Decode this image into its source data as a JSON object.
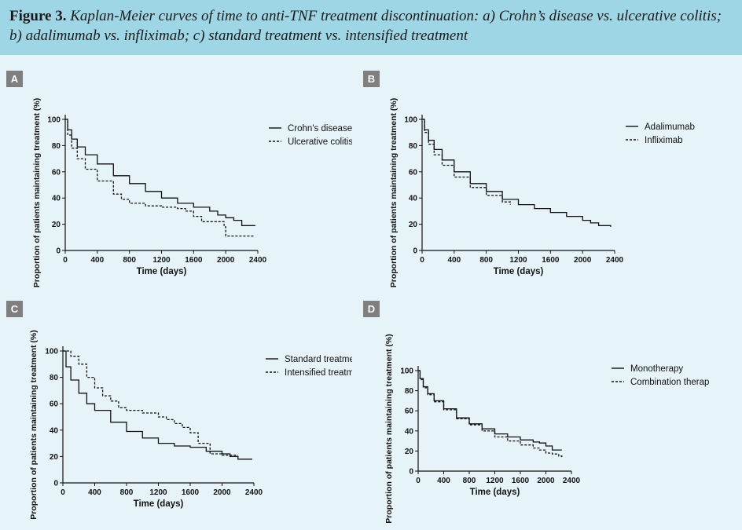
{
  "caption": {
    "label": "Figure 3.",
    "text": "Kaplan-Meier curves of time to anti-TNF treatment discontinuation: a) Crohn’s disease vs. ulcerative colitis; b) adalimumab vs. infliximab; c) standard treatment vs. intensified treatment"
  },
  "colors": {
    "caption_bg": "#9fd6e5",
    "page_bg": "#e6f3f8",
    "curve": "#111111",
    "badge": "#7f7f7f"
  },
  "chart_data": [
    {
      "panel": "A",
      "type": "line",
      "xlabel": "Time (days)",
      "ylabel": "Proportion of patients maintaining treatment (%)",
      "xlim": [
        0,
        2400
      ],
      "ylim": [
        0,
        100
      ],
      "xticks": [
        0,
        400,
        800,
        1200,
        1600,
        2000,
        2400
      ],
      "yticks": [
        0,
        20,
        40,
        60,
        80,
        100
      ],
      "legend_position": "top-right",
      "series": [
        {
          "name": "Crohn's disease",
          "style": "solid",
          "x": [
            0,
            30,
            80,
            150,
            250,
            400,
            600,
            800,
            1000,
            1200,
            1400,
            1600,
            1800,
            1900,
            2000,
            2100,
            2200,
            2370
          ],
          "y": [
            100,
            92,
            85,
            79,
            73,
            66,
            57,
            51,
            45,
            40,
            36,
            33,
            30,
            27,
            25,
            23,
            19,
            19
          ]
        },
        {
          "name": "Ulcerative colitis",
          "style": "dashed",
          "x": [
            0,
            30,
            80,
            150,
            250,
            400,
            600,
            700,
            800,
            1000,
            1200,
            1400,
            1500,
            1600,
            1700,
            1900,
            1980,
            2000,
            2200,
            2350
          ],
          "y": [
            100,
            88,
            78,
            70,
            62,
            53,
            43,
            39,
            36,
            34,
            33,
            32,
            30,
            26,
            22,
            22,
            18,
            11,
            11,
            11
          ]
        }
      ]
    },
    {
      "panel": "B",
      "type": "line",
      "xlabel": "Time (days)",
      "ylabel": "Proportion of patients maintaining treatment (%)",
      "xlim": [
        0,
        2400
      ],
      "ylim": [
        0,
        100
      ],
      "xticks": [
        0,
        400,
        800,
        1200,
        1600,
        2000,
        2400
      ],
      "yticks": [
        0,
        20,
        40,
        60,
        80,
        100
      ],
      "legend_position": "top-right",
      "series": [
        {
          "name": "Adalimumab",
          "style": "solid",
          "x": [
            0,
            30,
            80,
            150,
            250,
            400,
            600,
            800,
            1000,
            1200,
            1400,
            1600,
            1800,
            2000,
            2100,
            2200,
            2350
          ],
          "y": [
            100,
            92,
            84,
            77,
            69,
            60,
            51,
            45,
            39,
            35,
            32,
            29,
            26,
            23,
            21,
            19,
            18
          ]
        },
        {
          "name": "Infliximab",
          "style": "dashed",
          "x": [
            0,
            30,
            80,
            150,
            250,
            400,
            600,
            800,
            1000,
            1100
          ],
          "y": [
            100,
            90,
            81,
            73,
            65,
            56,
            48,
            42,
            37,
            35
          ]
        }
      ]
    },
    {
      "panel": "C",
      "type": "line",
      "xlabel": "Time (days)",
      "ylabel": "Proportion of patients maintaining treatment (%)",
      "xlim": [
        0,
        2400
      ],
      "ylim": [
        0,
        100
      ],
      "xticks": [
        0,
        400,
        800,
        1200,
        1600,
        2000,
        2400
      ],
      "yticks": [
        0,
        20,
        40,
        60,
        80,
        100
      ],
      "legend_position": "top-right",
      "series": [
        {
          "name": "Standard treatment",
          "style": "solid",
          "x": [
            0,
            40,
            100,
            200,
            300,
            400,
            600,
            800,
            1000,
            1200,
            1400,
            1600,
            1800,
            2000,
            2100,
            2200,
            2380
          ],
          "y": [
            100,
            88,
            78,
            68,
            60,
            55,
            46,
            39,
            34,
            30,
            28,
            27,
            24,
            22,
            20,
            18,
            18
          ]
        },
        {
          "name": "Intensified treatment",
          "style": "dashed",
          "x": [
            0,
            100,
            200,
            300,
            400,
            500,
            600,
            700,
            800,
            900,
            1000,
            1100,
            1200,
            1300,
            1400,
            1500,
            1600,
            1700,
            1800,
            1850,
            1900,
            2000,
            2100,
            2200
          ],
          "y": [
            100,
            96,
            90,
            80,
            72,
            66,
            62,
            57,
            55,
            55,
            53,
            53,
            50,
            48,
            45,
            42,
            38,
            30,
            30,
            22,
            22,
            21,
            21,
            21
          ]
        }
      ]
    },
    {
      "panel": "D",
      "type": "line",
      "xlabel": "Time (days)",
      "ylabel": "Proportion of patients maintaining treatment (%)",
      "xlim": [
        0,
        2400
      ],
      "ylim": [
        0,
        100
      ],
      "xticks": [
        0,
        400,
        800,
        1200,
        1600,
        2000,
        2400
      ],
      "yticks": [
        0,
        20,
        40,
        60,
        80,
        100
      ],
      "legend_position": "top-right",
      "series": [
        {
          "name": "Monotherapy",
          "style": "solid",
          "x": [
            0,
            30,
            80,
            150,
            250,
            400,
            600,
            800,
            1000,
            1200,
            1400,
            1600,
            1800,
            1900,
            2000,
            2100,
            2250
          ],
          "y": [
            100,
            92,
            84,
            77,
            70,
            62,
            53,
            47,
            42,
            37,
            34,
            31,
            29,
            28,
            25,
            21,
            21
          ]
        },
        {
          "name": "Combination therapy",
          "style": "dashed",
          "x": [
            0,
            30,
            80,
            150,
            250,
            400,
            600,
            800,
            1000,
            1200,
            1400,
            1600,
            1800,
            1900,
            2000,
            2100,
            2200,
            2250
          ],
          "y": [
            100,
            91,
            83,
            76,
            69,
            61,
            52,
            46,
            40,
            34,
            30,
            26,
            23,
            21,
            18,
            17,
            15,
            14
          ]
        }
      ]
    }
  ]
}
